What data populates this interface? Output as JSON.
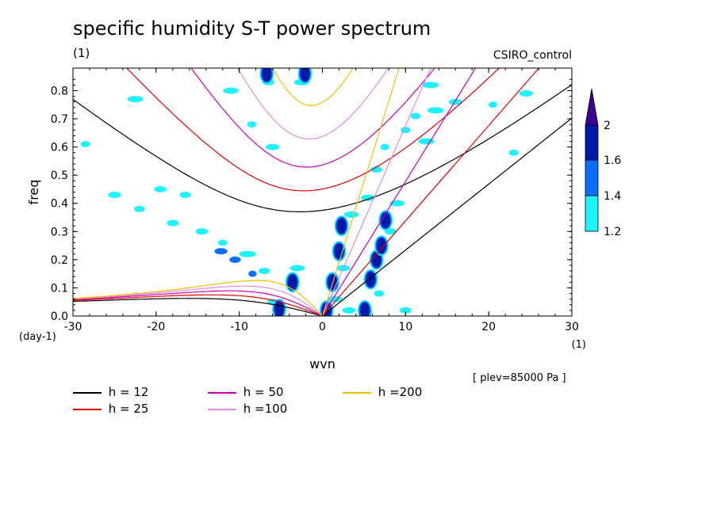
{
  "header": {
    "title": "specific humidity S-T power spectrum",
    "units": "(1)",
    "model": "CSIRO_control",
    "plev": "[ plev=85000 Pa ]"
  },
  "chart_data": {
    "type": "contour",
    "title": "specific humidity S-T power spectrum",
    "xlabel": "wvn",
    "ylabel": "freq",
    "x_unit": "(1)",
    "y_unit": "(day-1)",
    "xlim": [
      -30,
      30
    ],
    "ylim": [
      0,
      0.88
    ],
    "x_ticks": [
      -30,
      -20,
      -10,
      0,
      10,
      20,
      30
    ],
    "x_tick_labels": [
      "-30",
      "-20",
      "-10",
      "0",
      "10",
      "20",
      "30"
    ],
    "y_ticks": [
      0,
      0.1,
      0.2,
      0.3,
      0.4,
      0.5,
      0.6,
      0.7,
      0.8
    ],
    "y_tick_labels": [
      "0.0",
      "0.1",
      "0.2",
      "0.3",
      "0.4",
      "0.5",
      "0.6",
      "0.7",
      "0.8"
    ],
    "colorbar": {
      "levels": [
        1.2,
        1.4,
        1.6,
        2
      ],
      "labels": [
        "1.2",
        "1.4",
        "1.6",
        "2"
      ],
      "colors": [
        "#1ff2ff",
        "#0a6eff",
        "#001aa8",
        "#3a0096"
      ]
    },
    "dispersion_curves": [
      {
        "name": "h = 12",
        "h": 12,
        "color": "#000000"
      },
      {
        "name": "h = 25",
        "h": 25,
        "color": "#e00000"
      },
      {
        "name": "h = 50",
        "h": 50,
        "color": "#cc00b8"
      },
      {
        "name": "h =100",
        "h": 100,
        "color": "#e08ae0"
      },
      {
        "name": "h =200",
        "h": 200,
        "color": "#f0c000"
      }
    ],
    "blobs": [
      {
        "x": -5.2,
        "y": 0.025,
        "level": 1.6
      },
      {
        "x": -3.6,
        "y": 0.12,
        "level": 1.6
      },
      {
        "x": -6.7,
        "y": 0.86,
        "level": 1.6
      },
      {
        "x": -2.1,
        "y": 0.86,
        "level": 1.6
      },
      {
        "x": 0.5,
        "y": 0.02,
        "level": 1.6
      },
      {
        "x": 1.2,
        "y": 0.12,
        "level": 1.6
      },
      {
        "x": 2.0,
        "y": 0.23,
        "level": 1.6
      },
      {
        "x": 2.3,
        "y": 0.32,
        "level": 1.6
      },
      {
        "x": 5.1,
        "y": 0.02,
        "level": 1.6
      },
      {
        "x": 5.8,
        "y": 0.13,
        "level": 1.6
      },
      {
        "x": 6.5,
        "y": 0.2,
        "level": 1.6
      },
      {
        "x": 7.1,
        "y": 0.25,
        "level": 1.6
      },
      {
        "x": 7.6,
        "y": 0.34,
        "level": 1.6
      },
      {
        "x": -10.5,
        "y": 0.2,
        "level": 1.4
      },
      {
        "x": -12.2,
        "y": 0.23,
        "level": 1.4
      },
      {
        "x": -8.4,
        "y": 0.15,
        "level": 1.4
      },
      {
        "x": -14.5,
        "y": 0.3,
        "level": 1.2
      },
      {
        "x": -18,
        "y": 0.33,
        "level": 1.2
      },
      {
        "x": -12,
        "y": 0.26,
        "level": 1.2
      },
      {
        "x": -9,
        "y": 0.22,
        "level": 1.2
      },
      {
        "x": -7,
        "y": 0.16,
        "level": 1.2
      },
      {
        "x": -6,
        "y": 0.05,
        "level": 1.2
      },
      {
        "x": -3,
        "y": 0.17,
        "level": 1.2
      },
      {
        "x": -22,
        "y": 0.38,
        "level": 1.2
      },
      {
        "x": -25,
        "y": 0.43,
        "level": 1.2
      },
      {
        "x": -19.5,
        "y": 0.45,
        "level": 1.2
      },
      {
        "x": -16.5,
        "y": 0.43,
        "level": 1.2
      },
      {
        "x": -28.5,
        "y": 0.61,
        "level": 1.2
      },
      {
        "x": -22.5,
        "y": 0.77,
        "level": 1.2
      },
      {
        "x": -8.5,
        "y": 0.68,
        "level": 1.2
      },
      {
        "x": -6.5,
        "y": 0.83,
        "level": 1.2
      },
      {
        "x": -2.5,
        "y": 0.83,
        "level": 1.2
      },
      {
        "x": -11,
        "y": 0.8,
        "level": 1.2
      },
      {
        "x": -6,
        "y": 0.6,
        "level": 1.2
      },
      {
        "x": 3.5,
        "y": 0.36,
        "level": 1.2
      },
      {
        "x": 5.5,
        "y": 0.42,
        "level": 1.2
      },
      {
        "x": 6.5,
        "y": 0.52,
        "level": 1.2
      },
      {
        "x": 7.5,
        "y": 0.6,
        "level": 1.2
      },
      {
        "x": 8.2,
        "y": 0.3,
        "level": 1.2
      },
      {
        "x": 10,
        "y": 0.66,
        "level": 1.2
      },
      {
        "x": 11.2,
        "y": 0.71,
        "level": 1.2
      },
      {
        "x": 12.5,
        "y": 0.62,
        "level": 1.2
      },
      {
        "x": 13,
        "y": 0.82,
        "level": 1.2
      },
      {
        "x": 13.6,
        "y": 0.73,
        "level": 1.2
      },
      {
        "x": 16,
        "y": 0.76,
        "level": 1.2
      },
      {
        "x": 20.5,
        "y": 0.75,
        "level": 1.2
      },
      {
        "x": 24.5,
        "y": 0.79,
        "level": 1.2
      },
      {
        "x": 23,
        "y": 0.58,
        "level": 1.2
      },
      {
        "x": 1.5,
        "y": 0.06,
        "level": 1.2
      },
      {
        "x": 2.5,
        "y": 0.17,
        "level": 1.2
      },
      {
        "x": 6.8,
        "y": 0.08,
        "level": 1.2
      },
      {
        "x": 9,
        "y": 0.4,
        "level": 1.2
      },
      {
        "x": 3.2,
        "y": 0.02,
        "level": 1.2
      },
      {
        "x": 10,
        "y": 0.02,
        "level": 1.2
      }
    ]
  },
  "legend": {
    "items": [
      {
        "label": "h = 12",
        "color": "#000000"
      },
      {
        "label": "h = 25",
        "color": "#e00000"
      },
      {
        "label": "h = 50",
        "color": "#cc00b8"
      },
      {
        "label": "h =100",
        "color": "#e08ae0"
      },
      {
        "label": "h =200",
        "color": "#f0c000"
      }
    ]
  }
}
